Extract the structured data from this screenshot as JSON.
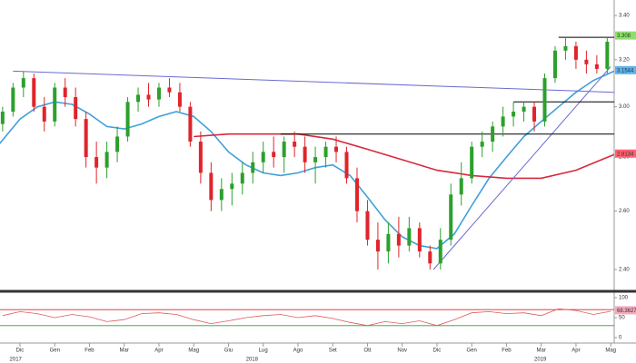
{
  "chart_data": [
    {
      "type": "candlestick",
      "x": [
        -0.5,
        -0.2,
        0.1,
        0.4,
        0.7,
        1.0,
        1.3,
        1.6,
        1.9,
        2.2,
        2.5,
        2.8,
        3.1,
        3.4,
        3.7,
        4.0,
        4.3,
        4.6,
        4.9,
        5.2,
        5.5,
        5.8,
        6.1,
        6.4,
        6.7,
        7.0,
        7.3,
        7.6,
        7.9,
        8.2,
        8.5,
        8.8,
        9.1,
        9.4,
        9.7,
        10.0,
        10.3,
        10.6,
        10.9,
        11.2,
        11.5,
        11.8,
        12.1,
        12.4,
        12.7,
        13.0,
        13.3,
        13.6,
        13.9,
        14.2,
        14.5,
        14.8,
        15.1,
        15.4,
        15.7,
        16.0,
        16.3,
        16.6,
        16.9
      ],
      "open": [
        2.93,
        2.98,
        3.08,
        3.12,
        3.0,
        2.94,
        3.08,
        3.04,
        2.95,
        2.8,
        2.76,
        2.82,
        2.88,
        3.02,
        3.05,
        3.03,
        3.08,
        3.06,
        3.0,
        2.86,
        2.74,
        2.64,
        2.68,
        2.7,
        2.74,
        2.78,
        2.82,
        2.8,
        2.86,
        2.84,
        2.78,
        2.8,
        2.84,
        2.82,
        2.72,
        2.6,
        2.5,
        2.46,
        2.52,
        2.48,
        2.54,
        2.46,
        2.42,
        2.5,
        2.66,
        2.72,
        2.84,
        2.86,
        2.92,
        2.96,
        2.98,
        3.0,
        2.94,
        3.12,
        3.24,
        3.26,
        3.2,
        3.18,
        3.16
      ],
      "high": [
        3.0,
        3.1,
        3.15,
        3.14,
        3.04,
        3.1,
        3.12,
        3.08,
        2.98,
        2.86,
        2.86,
        2.92,
        3.04,
        3.08,
        3.1,
        3.1,
        3.12,
        3.1,
        3.02,
        2.9,
        2.78,
        2.72,
        2.74,
        2.78,
        2.82,
        2.86,
        2.88,
        2.88,
        2.9,
        2.88,
        2.84,
        2.86,
        2.88,
        2.84,
        2.76,
        2.64,
        2.56,
        2.56,
        2.58,
        2.58,
        2.56,
        2.48,
        2.54,
        2.7,
        2.78,
        2.86,
        2.9,
        2.94,
        3.0,
        3.02,
        3.02,
        3.02,
        3.14,
        3.26,
        3.3,
        3.28,
        3.24,
        3.22,
        3.3
      ],
      "low": [
        2.9,
        2.96,
        3.04,
        2.98,
        2.9,
        2.92,
        3.0,
        2.92,
        2.76,
        2.7,
        2.72,
        2.78,
        2.86,
        2.98,
        3.0,
        3.0,
        3.04,
        2.98,
        2.84,
        2.7,
        2.6,
        2.6,
        2.62,
        2.66,
        2.7,
        2.74,
        2.76,
        2.74,
        2.8,
        2.74,
        2.7,
        2.76,
        2.78,
        2.7,
        2.56,
        2.48,
        2.4,
        2.42,
        2.44,
        2.46,
        2.44,
        2.4,
        2.4,
        2.48,
        2.62,
        2.7,
        2.8,
        2.82,
        2.88,
        2.92,
        2.94,
        2.9,
        2.92,
        3.1,
        3.2,
        3.16,
        3.14,
        3.14,
        3.14
      ],
      "close": [
        2.98,
        3.08,
        3.12,
        3.0,
        2.94,
        3.08,
        3.04,
        2.95,
        2.8,
        2.76,
        2.82,
        2.88,
        3.02,
        3.05,
        3.03,
        3.08,
        3.06,
        3.0,
        2.86,
        2.74,
        2.64,
        2.68,
        2.7,
        2.74,
        2.78,
        2.82,
        2.8,
        2.86,
        2.84,
        2.78,
        2.8,
        2.84,
        2.82,
        2.72,
        2.6,
        2.5,
        2.46,
        2.52,
        2.48,
        2.54,
        2.46,
        2.42,
        2.5,
        2.66,
        2.72,
        2.84,
        2.86,
        2.92,
        2.96,
        2.98,
        3.0,
        2.94,
        3.12,
        3.24,
        3.26,
        3.2,
        3.18,
        3.16,
        3.28
      ],
      "up_color": "#2ca02c",
      "down_color": "#e0242b",
      "xlim": [
        -0.575,
        17.1
      ],
      "ylim": [
        2.338,
        3.473
      ],
      "log": true,
      "yticks": [
        {
          "value": 2.4,
          "label": "2.40"
        },
        {
          "value": 2.6,
          "label": "2.60"
        },
        {
          "value": 2.8,
          "label": "2.80"
        },
        {
          "value": 3.0,
          "label": "3.00"
        },
        {
          "value": 3.2,
          "label": "3.20"
        },
        {
          "value": 3.4,
          "label": "3.40"
        }
      ],
      "overlays": [
        {
          "color": "#3ea0dc",
          "x": [
            -0.6,
            0,
            0.5,
            1,
            1.5,
            2,
            2.5,
            3,
            3.5,
            4,
            4.5,
            5,
            5.5,
            6,
            6.5,
            7,
            7.5,
            8,
            8.5,
            9,
            9.5,
            10,
            10.5,
            11,
            11.5,
            12,
            12.5,
            13,
            13.5,
            14,
            14.5,
            15,
            15.5,
            16,
            16.5,
            17.1
          ],
          "values": [
            2.85,
            2.95,
            3.0,
            3.02,
            3.01,
            2.97,
            2.92,
            2.91,
            2.93,
            2.96,
            2.98,
            2.96,
            2.9,
            2.82,
            2.77,
            2.74,
            2.73,
            2.74,
            2.76,
            2.77,
            2.73,
            2.65,
            2.57,
            2.51,
            2.48,
            2.47,
            2.52,
            2.62,
            2.72,
            2.8,
            2.88,
            2.94,
            3.0,
            3.06,
            3.11,
            3.15
          ]
        },
        {
          "color": "#d8283c",
          "x": [
            5,
            6,
            7,
            8,
            9,
            10,
            11,
            12,
            13,
            14,
            15,
            16,
            17.1
          ],
          "values": [
            2.88,
            2.89,
            2.89,
            2.89,
            2.87,
            2.83,
            2.79,
            2.75,
            2.73,
            2.72,
            2.72,
            2.75,
            2.81
          ]
        }
      ],
      "trendlines": [
        {
          "color": "#6a6ad0",
          "x": [
            -0.2,
            17.1
          ],
          "values": [
            3.15,
            3.06
          ]
        },
        {
          "color": "#6a6ad0",
          "x": [
            11.9,
            17.0
          ],
          "values": [
            2.4,
            3.17
          ]
        },
        {
          "color": "#000000",
          "x": [
            7.5,
            17.1
          ],
          "values": [
            2.89,
            2.89
          ]
        },
        {
          "color": "#000000",
          "x": [
            14.2,
            17.1
          ],
          "values": [
            3.02,
            3.02
          ]
        },
        {
          "color": "#000000",
          "x": [
            15.5,
            17.1
          ],
          "values": [
            3.3,
            3.3
          ]
        }
      ],
      "price_tags": [
        {
          "value": 3.308,
          "color": "#8be06a"
        },
        {
          "value": 3.1544,
          "color": "#5ab4f0"
        },
        {
          "value": 2.8134,
          "color": "#ff6070"
        }
      ]
    },
    {
      "type": "line",
      "x": [
        -0.5,
        0,
        0.5,
        1,
        1.5,
        2,
        2.5,
        3,
        3.5,
        4,
        4.5,
        5,
        5.5,
        6,
        6.5,
        7,
        7.5,
        8,
        8.5,
        9,
        9.5,
        10,
        10.5,
        11,
        11.5,
        12,
        12.5,
        13,
        13.5,
        14,
        14.5,
        15,
        15.5,
        16,
        16.5,
        17
      ],
      "values": [
        55,
        65,
        60,
        50,
        58,
        52,
        40,
        45,
        60,
        62,
        58,
        45,
        35,
        42,
        50,
        55,
        58,
        50,
        55,
        48,
        38,
        30,
        40,
        35,
        42,
        30,
        45,
        62,
        65,
        60,
        62,
        55,
        72,
        68,
        58,
        66
      ],
      "color": "#e05a5a",
      "xlim": [
        -0.575,
        17.1
      ],
      "ylim": [
        0,
        100
      ],
      "yticks": [
        0,
        50,
        100
      ],
      "levels": [
        {
          "value": 70,
          "color": "#e0242b"
        },
        {
          "value": 30,
          "color": "#2ca02c"
        }
      ],
      "tag": {
        "value": 68.3627,
        "color": "#f6a8bc"
      },
      "xticks": [
        {
          "value": 0,
          "label": "Dic"
        },
        {
          "value": 1,
          "label": "Gen"
        },
        {
          "value": 2,
          "label": "Feb"
        },
        {
          "value": 3,
          "label": "Mar"
        },
        {
          "value": 4,
          "label": "Apr"
        },
        {
          "value": 5,
          "label": "Mag"
        },
        {
          "value": 6,
          "label": "Giu"
        },
        {
          "value": 7,
          "label": "Lug"
        },
        {
          "value": 8,
          "label": "Ago"
        },
        {
          "value": 9,
          "label": "Set"
        },
        {
          "value": 10,
          "label": "Ott"
        },
        {
          "value": 11,
          "label": "Nov"
        },
        {
          "value": 12,
          "label": "Dic"
        },
        {
          "value": 13,
          "label": "Gen"
        },
        {
          "value": 14,
          "label": "Feb"
        },
        {
          "value": 15,
          "label": "Mar"
        },
        {
          "value": 16,
          "label": "Apr"
        },
        {
          "value": 17,
          "label": "Mag"
        }
      ],
      "year_labels": [
        {
          "value": -0.3,
          "label": "2017"
        },
        {
          "value": 6.5,
          "label": "2018"
        },
        {
          "value": 14.8,
          "label": "2019"
        }
      ]
    }
  ]
}
